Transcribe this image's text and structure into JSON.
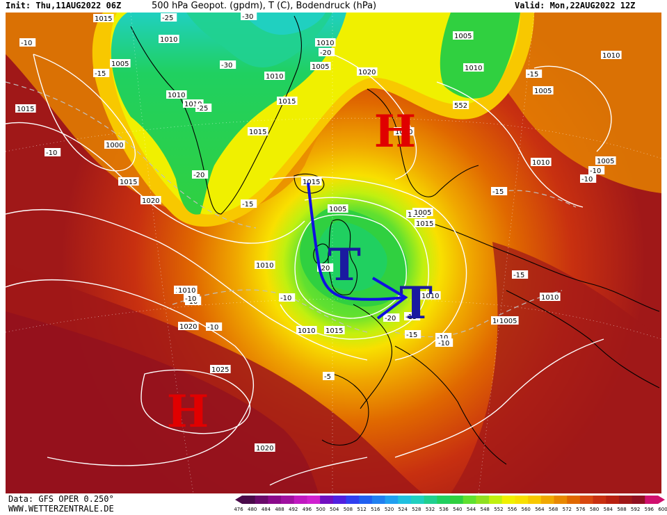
{
  "header": {
    "init": "Init: Thu,11AUG2022 06Z",
    "title": "500 hPa Geopot. (gpdm), T (C), Bodendruck (hPa)",
    "valid": "Valid: Mon,22AUG2022 12Z"
  },
  "footer": {
    "data_line": "Data: GFS OPER 0.250°",
    "site": "WWW.WETTERZENTRALE.DE"
  },
  "colorbar": {
    "labels": [
      "476",
      "480",
      "484",
      "488",
      "492",
      "496",
      "500",
      "504",
      "508",
      "512",
      "516",
      "520",
      "524",
      "528",
      "532",
      "536",
      "540",
      "544",
      "548",
      "552",
      "556",
      "560",
      "564",
      "568",
      "572",
      "576",
      "580",
      "584",
      "588",
      "592",
      "596",
      "600"
    ],
    "colors": [
      "#4a0a4a",
      "#6a0a6a",
      "#8a0a8a",
      "#a010a0",
      "#c018c0",
      "#d020d0",
      "#7010c0",
      "#5020e0",
      "#3040f0",
      "#2060f0",
      "#2080f0",
      "#20a0f0",
      "#20c0e0",
      "#20d0c0",
      "#20d090",
      "#20d060",
      "#30d040",
      "#60e030",
      "#90e020",
      "#c0f010",
      "#f0f000",
      "#f8e000",
      "#f8c800",
      "#f0a800",
      "#e88800",
      "#e06800",
      "#d84810",
      "#c83010",
      "#b82010",
      "#a01818",
      "#901020",
      "#d0106e"
    ]
  },
  "annotations": {
    "high_north": "H",
    "high_south": "H",
    "low_1": "T",
    "low_2": "T",
    "high_north_color": "#e00000",
    "high_south_color": "#e00000",
    "low_color": "#1a1aa0",
    "arrow_color": "#1010e0"
  },
  "isobars": [
    "1015",
    "1010",
    "1005",
    "1010",
    "1005",
    "1010",
    "1010",
    "1015",
    "1010",
    "1005",
    "1020",
    "1015",
    "1000",
    "1010",
    "1015",
    "1020",
    "1005",
    "552",
    "1010",
    "1005",
    "1010",
    "1015",
    "1015",
    "1020",
    "1025",
    "1020",
    "1010",
    "1010",
    "1015",
    "1005",
    "1010",
    "1005",
    "1005",
    "1015",
    "1010",
    "1020",
    "1010",
    "1005",
    "1015",
    "1010"
  ],
  "temps": [
    "-10",
    "-15",
    "-10",
    "-25",
    "-30",
    "-30",
    "-25",
    "-20",
    "-15",
    "-20",
    "-15",
    "-10",
    "-15",
    "-10",
    "-15",
    "-10",
    "-10",
    "-20",
    "-25",
    "-15",
    "-10",
    "-10",
    "-10",
    "-5",
    "-10",
    "-15",
    "-20",
    "-10"
  ]
}
